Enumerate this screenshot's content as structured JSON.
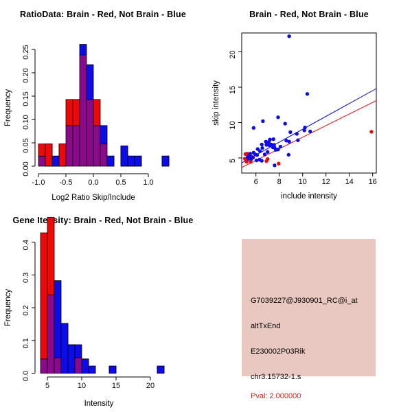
{
  "colors": {
    "red": "#F00808",
    "blue": "#0B0BEB",
    "overlap": "#8B0A8B",
    "red_line": "#E02020",
    "blue_line": "#2020CC",
    "info_box_bg": "#E8C8C0",
    "pval_red": "#E02020",
    "axis": "#000000"
  },
  "chart_data": [
    {
      "id": "ratio_hist",
      "type": "bar",
      "variant": "overlaid-histogram",
      "title": "RatioData: Brain - Red, Not Brain - Blue",
      "xlabel": "Log2 Ratio Skip/Include",
      "ylabel": "Frequency",
      "series_legend": {
        "red": "Brain",
        "blue": "Not Brain"
      },
      "xticks": [
        -1.0,
        -0.5,
        0.0,
        0.5,
        1.0
      ],
      "xtick_labels": [
        "-1.0",
        "-0.5",
        "0.0",
        "0.5",
        "1.0"
      ],
      "yticks": [
        0.0,
        0.05,
        0.1,
        0.15,
        0.2,
        0.25
      ],
      "ytick_labels": [
        "0.00",
        "0.05",
        "0.10",
        "0.15",
        "0.20",
        "0.25"
      ],
      "xlim": [
        -1.06,
        1.38
      ],
      "ylim": [
        0,
        0.27
      ],
      "grid": false,
      "bin_width": 0.125,
      "bins": [
        {
          "x0": -1.0,
          "x1": -0.875,
          "red": 0.0476,
          "blue": 0.0217
        },
        {
          "x0": -0.875,
          "x1": -0.75,
          "red": 0.0476,
          "blue": 0
        },
        {
          "x0": -0.75,
          "x1": -0.625,
          "red": 0,
          "blue": 0.0217
        },
        {
          "x0": -0.625,
          "x1": -0.5,
          "red": 0.0476,
          "blue": 0
        },
        {
          "x0": -0.5,
          "x1": -0.375,
          "red": 0.1429,
          "blue": 0.087
        },
        {
          "x0": -0.375,
          "x1": -0.25,
          "red": 0.1429,
          "blue": 0.087
        },
        {
          "x0": -0.25,
          "x1": -0.125,
          "red": 0.2381,
          "blue": 0.2609
        },
        {
          "x0": -0.125,
          "x1": 0.0,
          "red": 0.1429,
          "blue": 0.2174
        },
        {
          "x0": 0.0,
          "x1": 0.125,
          "red": 0.1429,
          "blue": 0.087
        },
        {
          "x0": 0.125,
          "x1": 0.25,
          "red": 0.0476,
          "blue": 0.087
        },
        {
          "x0": 0.25,
          "x1": 0.375,
          "red": 0,
          "blue": 0.0217
        },
        {
          "x0": 0.5,
          "x1": 0.625,
          "red": 0,
          "blue": 0.0435
        },
        {
          "x0": 0.625,
          "x1": 0.75,
          "red": 0,
          "blue": 0.0217
        },
        {
          "x0": 0.75,
          "x1": 0.875,
          "red": 0,
          "blue": 0.0217
        },
        {
          "x0": 1.25,
          "x1": 1.375,
          "red": 0,
          "blue": 0.0217
        }
      ]
    },
    {
      "id": "scatter",
      "type": "scatter",
      "title": "Brain - Red, Not Brain - Blue",
      "xlabel": "include intensity",
      "ylabel": "skip intensity",
      "series_legend": {
        "red": "Brain",
        "blue": "Not Brain"
      },
      "xticks": [
        6,
        8,
        10,
        12,
        14,
        16
      ],
      "xtick_labels": [
        "6",
        "8",
        "10",
        "12",
        "14",
        "16"
      ],
      "yticks": [
        5,
        10,
        15,
        20
      ],
      "ytick_labels": [
        "5",
        "10",
        "15",
        "20"
      ],
      "xlim": [
        4.78,
        16.31
      ],
      "ylim": [
        2.86,
        22.67
      ],
      "grid": false,
      "blue_points": [
        [
          8.85,
          22.2
        ],
        [
          10.4,
          14.05
        ],
        [
          7.9,
          10.75
        ],
        [
          6.6,
          10.2
        ],
        [
          8.5,
          9.85
        ],
        [
          5.8,
          9.25
        ],
        [
          10.2,
          9.3
        ],
        [
          10.65,
          8.75
        ],
        [
          8.95,
          8.65
        ],
        [
          9.5,
          8.4
        ],
        [
          10.15,
          8.9
        ],
        [
          9.6,
          7.5
        ],
        [
          8.6,
          7.45
        ],
        [
          8.85,
          7.3
        ],
        [
          7.2,
          7.6
        ],
        [
          6.85,
          7.3
        ],
        [
          7.1,
          7.25
        ],
        [
          7.5,
          7.65
        ],
        [
          6.5,
          6.9
        ],
        [
          6.9,
          6.85
        ],
        [
          7.15,
          6.8
        ],
        [
          7.3,
          6.9
        ],
        [
          7.45,
          6.5
        ],
        [
          7.55,
          6.85
        ],
        [
          7.6,
          6.45
        ],
        [
          7.7,
          6.15
        ],
        [
          7.9,
          6.2
        ],
        [
          8.1,
          6.6
        ],
        [
          6.35,
          5.95
        ],
        [
          6.55,
          6.4
        ],
        [
          6.15,
          6.25
        ],
        [
          5.8,
          5.75
        ],
        [
          5.95,
          5.5
        ],
        [
          6.1,
          5.4
        ],
        [
          6.75,
          5.5
        ],
        [
          7.0,
          5.85
        ],
        [
          5.45,
          5.3
        ],
        [
          5.5,
          5.6
        ],
        [
          5.3,
          5.15
        ],
        [
          5.35,
          4.9
        ],
        [
          5.6,
          4.85
        ],
        [
          5.75,
          5.05
        ],
        [
          6.3,
          4.75
        ],
        [
          6.5,
          4.6
        ],
        [
          8.8,
          5.45
        ],
        [
          7.6,
          3.95
        ],
        [
          6.05,
          4.65
        ]
      ],
      "red_points": [
        [
          15.9,
          8.7
        ],
        [
          5.1,
          5.55
        ],
        [
          5.25,
          5.6
        ],
        [
          5.05,
          4.9
        ],
        [
          5.15,
          4.75
        ],
        [
          5.3,
          4.8
        ],
        [
          5.45,
          4.95
        ],
        [
          5.55,
          4.45
        ],
        [
          5.2,
          4.45
        ],
        [
          6.9,
          4.55
        ],
        [
          7.0,
          4.85
        ],
        [
          7.95,
          4.2
        ],
        [
          5.65,
          5.2
        ],
        [
          5.4,
          5.45
        ]
      ],
      "blue_line": [
        [
          4.78,
          4.3
        ],
        [
          16.31,
          14.8
        ]
      ],
      "red_line": [
        [
          4.78,
          3.65
        ],
        [
          16.31,
          13.1
        ]
      ]
    },
    {
      "id": "gene_hist",
      "type": "bar",
      "variant": "overlaid-histogram",
      "title": "Gene Itensity: Brain - Red, Not Brain - Blue",
      "xlabel": "Intensity",
      "ylabel": "Frequency",
      "series_legend": {
        "red": "Brain",
        "blue": "Not Brain"
      },
      "xticks": [
        5,
        10,
        15,
        20
      ],
      "xtick_labels": [
        "5",
        "10",
        "15",
        "20"
      ],
      "yticks": [
        0.0,
        0.1,
        0.2,
        0.3,
        0.4
      ],
      "ytick_labels": [
        "0.0",
        "0.1",
        "0.2",
        "0.3",
        "0.4"
      ],
      "xlim": [
        4,
        22.5
      ],
      "ylim": [
        0,
        0.48
      ],
      "grid": false,
      "bin_width": 1,
      "bins": [
        {
          "x0": 4,
          "x1": 5,
          "red": 0.4286,
          "blue": 0.0435
        },
        {
          "x0": 5,
          "x1": 6,
          "red": 0.4762,
          "blue": 0.2391
        },
        {
          "x0": 6,
          "x1": 7,
          "red": 0.0476,
          "blue": 0.2826
        },
        {
          "x0": 7,
          "x1": 8,
          "red": 0,
          "blue": 0.1522
        },
        {
          "x0": 8,
          "x1": 9,
          "red": 0,
          "blue": 0.087
        },
        {
          "x0": 9,
          "x1": 10,
          "red": 0.0476,
          "blue": 0.087
        },
        {
          "x0": 10,
          "x1": 11,
          "red": 0,
          "blue": 0.0435
        },
        {
          "x0": 11,
          "x1": 12,
          "red": 0,
          "blue": 0.0217
        },
        {
          "x0": 14,
          "x1": 15,
          "red": 0,
          "blue": 0.0217
        },
        {
          "x0": 21,
          "x1": 22,
          "red": 0,
          "blue": 0.0217
        }
      ]
    }
  ],
  "info_panel": {
    "lines": [
      {
        "text": "G7039227@J930901_RC@i_at",
        "color": "black"
      },
      {
        "text": "altTxEnd",
        "color": "black"
      },
      {
        "text": "E230002P03Rik",
        "color": "black"
      },
      {
        "text": "chr3.15732-1.s",
        "color": "black"
      },
      {
        "text": "Pval: 2.000000",
        "color": "red"
      }
    ]
  }
}
